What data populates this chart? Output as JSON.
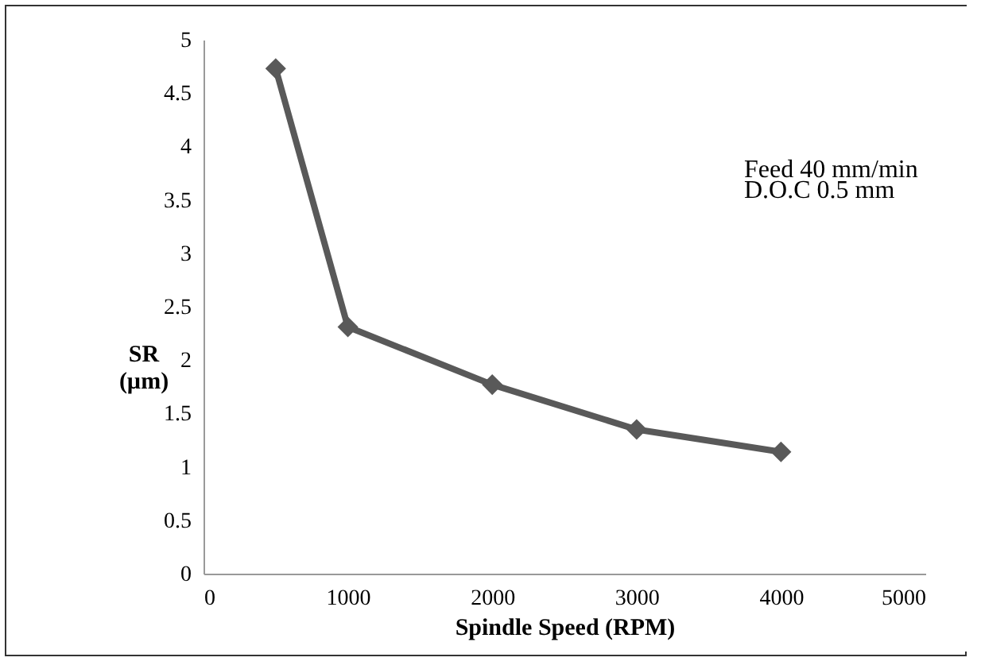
{
  "chart_data": {
    "type": "line",
    "xlabel": "Spindle Speed (RPM)",
    "ylabel": "SR (µm)",
    "x": [
      500,
      1000,
      2000,
      3000,
      4000
    ],
    "series": [
      {
        "color": "#595959",
        "values": [
          4.73,
          2.31,
          1.77,
          1.35,
          1.14
        ]
      }
    ],
    "xlim": [
      0,
      5000
    ],
    "xticks": [
      0,
      1000,
      2000,
      3000,
      4000,
      5000
    ],
    "ylim": [
      0,
      5
    ],
    "yticks": [
      0,
      0.5,
      1,
      1.5,
      2,
      2.5,
      3,
      3.5,
      4,
      4.5,
      5
    ],
    "grid": false,
    "marker": "diamond",
    "line_style": "solid",
    "annotations": [
      "Feed 40 mm/min",
      "D.O.C  0.5 mm"
    ]
  }
}
